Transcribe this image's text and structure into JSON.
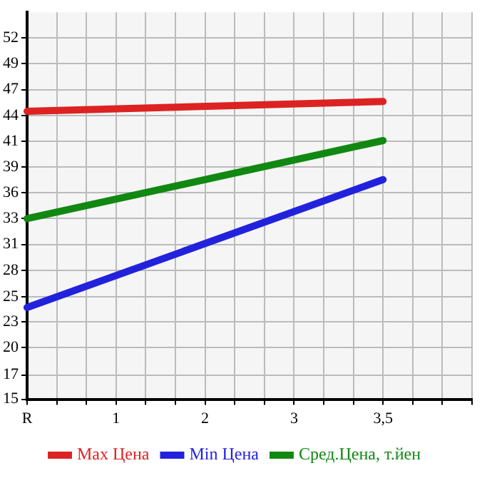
{
  "chart_data": {
    "type": "line",
    "categories": [
      "R",
      null,
      null,
      "1",
      null,
      null,
      "2",
      null,
      null,
      "3",
      null,
      null,
      "3,5",
      null,
      null,
      null
    ],
    "series": [
      {
        "name": "Max Цена",
        "color": "#dd2222",
        "x": [
          "R",
          "3,5"
        ],
        "values": [
          44.5,
          45.5
        ]
      },
      {
        "name": "Min Цена",
        "color": "#2222dd",
        "x": [
          "R",
          "3,5"
        ],
        "values": [
          24.4,
          37.5
        ]
      },
      {
        "name": "Сред.Цена, т.йен",
        "color": "#118811",
        "x": [
          "R",
          "3,5"
        ],
        "values": [
          33.5,
          41.5
        ]
      }
    ],
    "ylim": [
      15,
      54.64
    ],
    "yticks": [
      {
        "value": 15,
        "label": "15"
      },
      {
        "value": 17.49,
        "label": "17"
      },
      {
        "value": 20.29,
        "label": "20"
      },
      {
        "value": 22.93,
        "label": "23"
      },
      {
        "value": 25.49,
        "label": "25"
      },
      {
        "value": 28.21,
        "label": "28"
      },
      {
        "value": 30.86,
        "label": "31"
      },
      {
        "value": 33.5,
        "label": "33"
      },
      {
        "value": 36.14,
        "label": "36"
      },
      {
        "value": 38.79,
        "label": "39"
      },
      {
        "value": 41.43,
        "label": "41"
      },
      {
        "value": 44.07,
        "label": "44"
      },
      {
        "value": 46.71,
        "label": "47"
      },
      {
        "value": 49.36,
        "label": "49"
      },
      {
        "value": 52,
        "label": "52"
      }
    ],
    "grid": true,
    "legend": "bottom",
    "marker": "none",
    "line_style": "solid"
  }
}
